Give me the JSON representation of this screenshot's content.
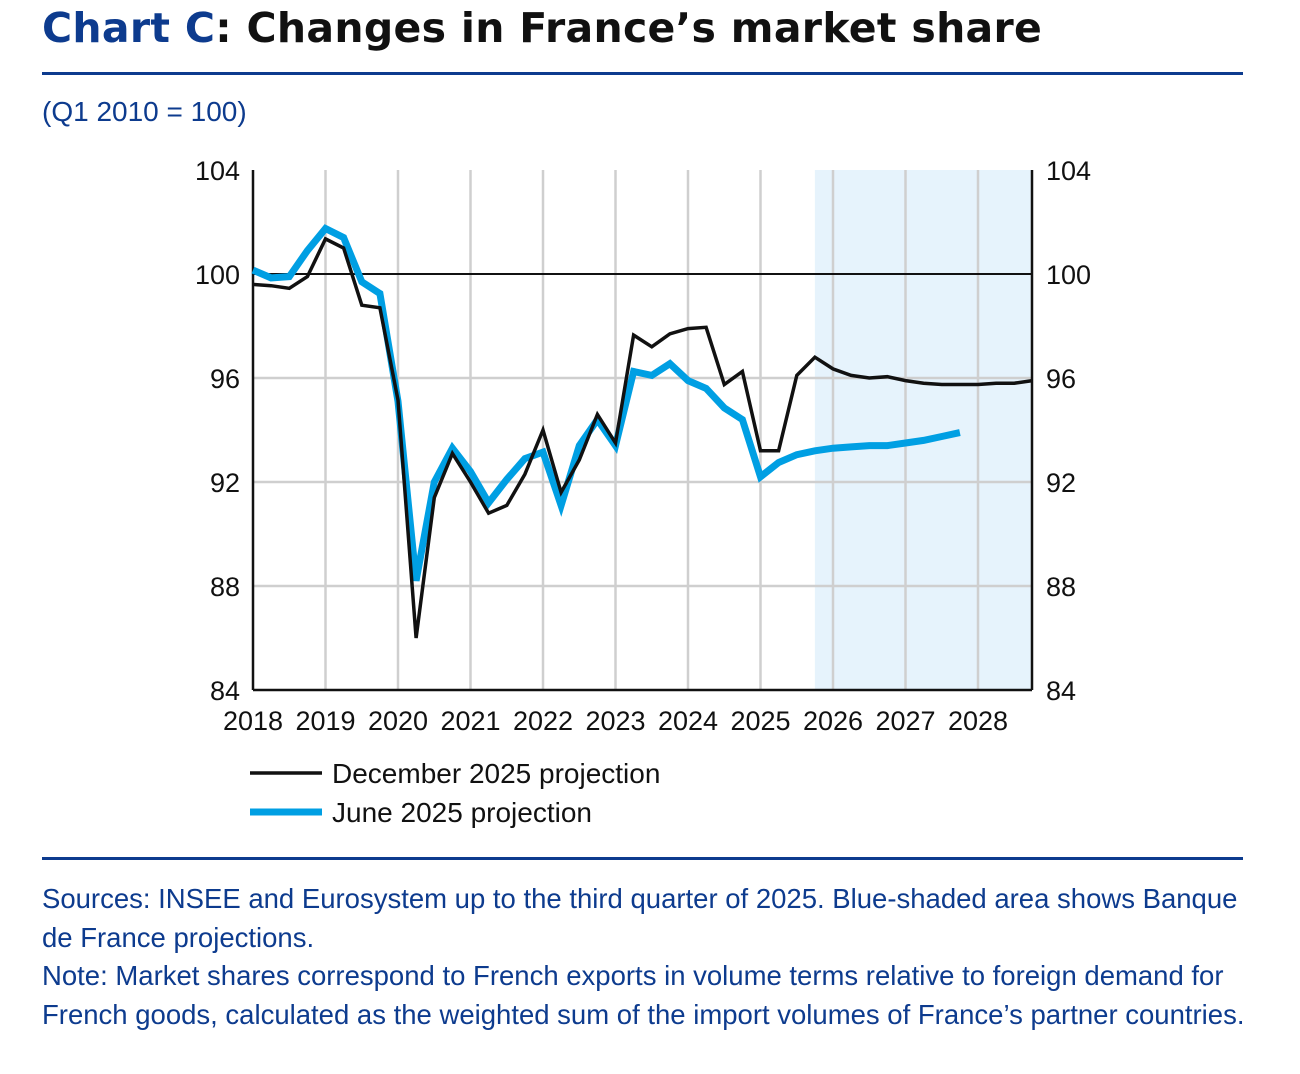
{
  "title_prefix": "Chart C",
  "title_rest": ": Changes in France’s market share",
  "subtitle": "(Q1 2010 = 100)",
  "chart_data": {
    "type": "line",
    "ylim": [
      84,
      104
    ],
    "yticks": [
      84,
      88,
      92,
      96,
      100,
      104
    ],
    "y_tick_labels": [
      "84",
      "88",
      "92",
      "96",
      "100",
      "104"
    ],
    "right_axis_mirrored": true,
    "reference_line": 100,
    "x_tick_labels": [
      "2018",
      "2019",
      "2020",
      "2021",
      "2022",
      "2023",
      "2024",
      "2025",
      "2026",
      "2027",
      "2028"
    ],
    "x_start": "2018 Q1",
    "frequency": "quarterly",
    "grid": true,
    "projection_shade_from": "2025 Q4",
    "projection_shade_color": "#e6f3fc",
    "legend_position": "bottom-left",
    "series": [
      {
        "name": "December 2025 projection",
        "color": "#111111",
        "values": [
          99.6,
          99.55,
          99.45,
          99.9,
          101.35,
          101.0,
          98.8,
          98.7,
          95.15,
          86.0,
          91.4,
          93.1,
          92.0,
          90.8,
          91.1,
          92.3,
          94.0,
          91.6,
          92.85,
          94.6,
          93.5,
          97.65,
          97.2,
          97.7,
          97.9,
          97.95,
          95.75,
          96.25,
          93.2,
          93.2,
          96.1,
          96.8,
          96.35,
          96.1,
          96.0,
          96.05,
          95.9,
          95.8,
          95.75,
          95.75,
          95.75,
          95.8,
          95.8,
          95.9
        ]
      },
      {
        "name": "June 2025 projection",
        "color": "#009fe3",
        "values": [
          100.15,
          99.85,
          99.9,
          100.9,
          101.75,
          101.4,
          99.7,
          99.25,
          95.1,
          88.2,
          92.0,
          93.3,
          92.4,
          91.2,
          92.1,
          92.9,
          93.15,
          91.1,
          93.4,
          94.4,
          93.4,
          96.25,
          96.1,
          96.55,
          95.9,
          95.6,
          94.85,
          94.4,
          92.2,
          92.75,
          93.05,
          93.2,
          93.3,
          93.35,
          93.4,
          93.4,
          93.5,
          93.6,
          93.75,
          93.9
        ]
      }
    ]
  },
  "notes": {
    "sources": "Sources: INSEE and Eurosystem up to the third quarter of 2025. Blue-shaded area shows Banque de France projections.",
    "note": "Note: Market shares correspond to French exports in volume terms relative to foreign demand for French goods, calculated as the weighted sum of the import volumes of France’s partner countries."
  }
}
